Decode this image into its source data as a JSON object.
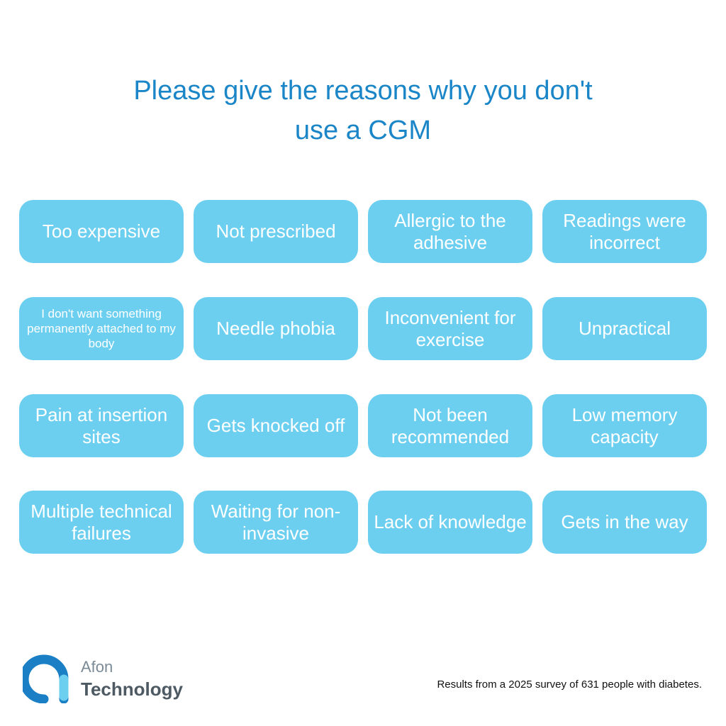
{
  "header": {
    "title": "Please give the reasons why you don't use a CGM"
  },
  "reasons": [
    "Too expensive",
    "Not prescribed",
    "Allergic to the adhesive",
    "Readings were incorrect",
    "I don't want something permanently attached to my body",
    "Needle phobia",
    "Inconvenient for exercise",
    "Unpractical",
    "Pain at insertion sites",
    "Gets knocked off",
    "Not been recommended",
    "Low memory capacity",
    "Multiple technical failures",
    "Waiting for non-invasive",
    "Lack of knowledge",
    "Gets in the way"
  ],
  "logo": {
    "line1": "Afon",
    "line2": "Technology"
  },
  "footnote": "Results from a 2025 survey of 631 people with diabetes."
}
